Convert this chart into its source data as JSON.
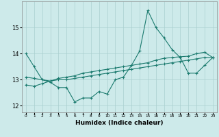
{
  "xlabel": "Humidex (Indice chaleur)",
  "x_values": [
    0,
    1,
    2,
    3,
    4,
    5,
    6,
    7,
    8,
    9,
    10,
    11,
    12,
    13,
    14,
    15,
    16,
    17,
    18,
    19,
    20,
    21,
    22,
    23
  ],
  "line1_y": [
    14.0,
    13.5,
    13.0,
    12.9,
    12.7,
    12.7,
    12.15,
    12.3,
    12.3,
    12.55,
    12.45,
    13.0,
    13.1,
    13.55,
    14.1,
    15.65,
    15.0,
    14.6,
    14.15,
    13.85,
    13.25,
    13.25,
    13.55,
    13.85
  ],
  "line2_y": [
    13.1,
    13.05,
    13.0,
    12.95,
    13.05,
    13.1,
    13.15,
    13.25,
    13.3,
    13.35,
    13.4,
    13.45,
    13.5,
    13.55,
    13.6,
    13.65,
    13.75,
    13.82,
    13.85,
    13.88,
    13.9,
    14.0,
    14.05,
    13.85
  ],
  "line3_y": [
    12.8,
    12.75,
    12.85,
    12.95,
    13.0,
    13.0,
    13.05,
    13.1,
    13.15,
    13.2,
    13.25,
    13.3,
    13.35,
    13.4,
    13.45,
    13.5,
    13.55,
    13.6,
    13.65,
    13.7,
    13.75,
    13.8,
    13.85,
    13.85
  ],
  "line_color": "#1a7a6e",
  "bg_color": "#cdeaea",
  "grid_color": "#aacfcf",
  "ylim": [
    11.75,
    16.0
  ],
  "yticks": [
    12,
    13,
    14,
    15
  ],
  "xlim": [
    -0.5,
    23.5
  ],
  "marker": "+",
  "markersize": 3.5,
  "linewidth": 0.8
}
